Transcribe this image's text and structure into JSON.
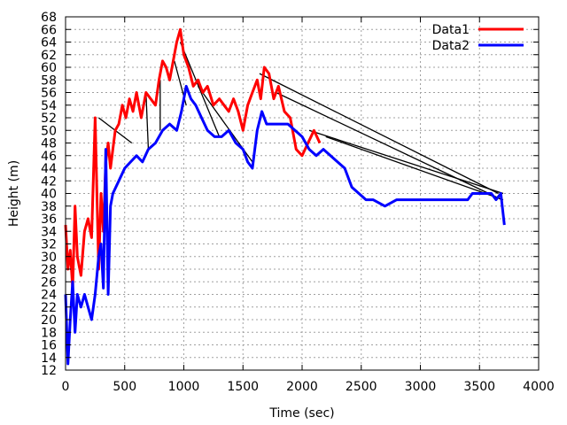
{
  "chart_data": {
    "type": "line",
    "title": "",
    "xlabel": "Time (sec)",
    "ylabel": "Height (m)",
    "xlim": [
      0,
      4000
    ],
    "ylim": [
      12,
      68
    ],
    "xticks": [
      0,
      500,
      1000,
      1500,
      2000,
      2500,
      3000,
      3500,
      4000
    ],
    "yticks": [
      12,
      14,
      16,
      18,
      20,
      22,
      24,
      26,
      28,
      30,
      32,
      34,
      36,
      38,
      40,
      42,
      44,
      46,
      48,
      50,
      52,
      54,
      56,
      58,
      60,
      62,
      64,
      66,
      68
    ],
    "grid": true,
    "legend_position": "top-right",
    "series": [
      {
        "name": "Data1",
        "color": "#ff0000",
        "x": [
          0,
          20,
          40,
          60,
          80,
          100,
          130,
          160,
          190,
          220,
          250,
          280,
          300,
          320,
          340,
          360,
          380,
          400,
          420,
          450,
          480,
          510,
          540,
          570,
          600,
          640,
          680,
          720,
          760,
          790,
          820,
          850,
          880,
          910,
          940,
          970,
          1000,
          1040,
          1080,
          1120,
          1160,
          1200,
          1250,
          1300,
          1340,
          1380,
          1420,
          1460,
          1500,
          1540,
          1580,
          1620,
          1650,
          1680,
          1720,
          1760,
          1800,
          1850,
          1900,
          1950,
          2000,
          2050,
          2100,
          2150
        ],
        "y": [
          35,
          28,
          31,
          25,
          38,
          30,
          27,
          34,
          36,
          33,
          52,
          28,
          40,
          34,
          45,
          48,
          44,
          47,
          50,
          51,
          54,
          52,
          55,
          53,
          56,
          52,
          56,
          55,
          54,
          58,
          61,
          60,
          58,
          61,
          64,
          66,
          62,
          60,
          57,
          58,
          56,
          57,
          54,
          55,
          54,
          53,
          55,
          53,
          50,
          54,
          56,
          58,
          55,
          60,
          59,
          55,
          57,
          53,
          52,
          47,
          46,
          48,
          50,
          48
        ]
      },
      {
        "name": "Data2",
        "color": "#0000ff",
        "x": [
          0,
          20,
          40,
          60,
          80,
          100,
          130,
          160,
          190,
          220,
          250,
          280,
          300,
          320,
          340,
          360,
          380,
          400,
          450,
          500,
          550,
          600,
          650,
          700,
          760,
          820,
          880,
          940,
          980,
          1020,
          1060,
          1100,
          1150,
          1200,
          1260,
          1320,
          1380,
          1440,
          1500,
          1540,
          1580,
          1620,
          1660,
          1700,
          1760,
          1820,
          1880,
          1940,
          2000,
          2060,
          2120,
          2180,
          2240,
          2300,
          2360,
          2420,
          2480,
          2540,
          2600,
          2700,
          2800,
          2900,
          3000,
          3100,
          3200,
          3300,
          3400,
          3440,
          3480,
          3520,
          3560,
          3600,
          3640,
          3680,
          3710
        ],
        "y": [
          24,
          13,
          20,
          26,
          18,
          24,
          22,
          24,
          22,
          20,
          24,
          30,
          32,
          25,
          47,
          24,
          38,
          40,
          42,
          44,
          45,
          46,
          45,
          47,
          48,
          50,
          51,
          50,
          53,
          57,
          55,
          54,
          52,
          50,
          49,
          49,
          50,
          48,
          47,
          45,
          44,
          50,
          53,
          51,
          51,
          51,
          51,
          50,
          49,
          47,
          46,
          47,
          46,
          45,
          44,
          41,
          40,
          39,
          39,
          38,
          39,
          39,
          39,
          39,
          39,
          39,
          39,
          40,
          40,
          40,
          40,
          40,
          39,
          40,
          35
        ]
      }
    ],
    "connector_lines": {
      "color": "#000000",
      "segments": [
        {
          "x": [
            920,
            1020
          ],
          "y": [
            61,
            54
          ]
        },
        {
          "x": [
            970,
            1300
          ],
          "y": [
            64,
            49
          ]
        },
        {
          "x": [
            1120,
            1580
          ],
          "y": [
            57,
            45
          ]
        },
        {
          "x": [
            1640,
            3660
          ],
          "y": [
            59,
            40
          ]
        },
        {
          "x": [
            1780,
            3690
          ],
          "y": [
            56,
            39
          ]
        },
        {
          "x": [
            2060,
            3700
          ],
          "y": [
            50,
            40
          ]
        },
        {
          "x": [
            2200,
            3700
          ],
          "y": [
            49,
            39
          ]
        },
        {
          "x": [
            280,
            560
          ],
          "y": [
            52,
            48
          ]
        },
        {
          "x": [
            680,
            700
          ],
          "y": [
            56,
            47
          ]
        },
        {
          "x": [
            800,
            800
          ],
          "y": [
            58,
            50
          ]
        }
      ]
    }
  }
}
